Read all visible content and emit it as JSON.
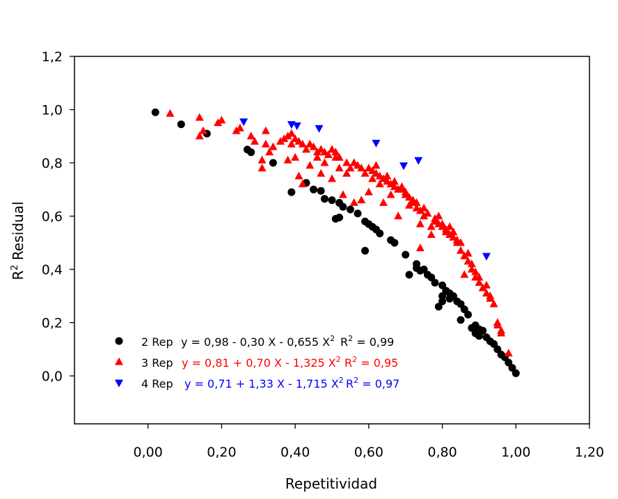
{
  "chart_data": {
    "type": "scatter",
    "title": "",
    "xlabel": "Repetitividad",
    "ylabel_main": "R",
    "ylabel_sup": "2",
    "ylabel_rest": " Residual",
    "xlim": [
      -0.2,
      1.2
    ],
    "ylim": [
      -0.18,
      1.2
    ],
    "x_ticks": [
      {
        "value": 0.0,
        "label": "0,00"
      },
      {
        "value": 0.2,
        "label": "0,20"
      },
      {
        "value": 0.4,
        "label": "0,40"
      },
      {
        "value": 0.6,
        "label": "0,60"
      },
      {
        "value": 0.8,
        "label": "0,80"
      },
      {
        "value": 1.0,
        "label": "1,00"
      },
      {
        "value": 1.2,
        "label": "1,20"
      }
    ],
    "y_ticks": [
      {
        "value": 0.0,
        "label": "0,0"
      },
      {
        "value": 0.2,
        "label": "0,2"
      },
      {
        "value": 0.4,
        "label": "0,4"
      },
      {
        "value": 0.6,
        "label": "0,6"
      },
      {
        "value": 0.8,
        "label": "0,8"
      },
      {
        "value": 1.0,
        "label": "1,0"
      },
      {
        "value": 1.2,
        "label": "1,2"
      }
    ],
    "grid": false,
    "legend_position": "bottom-left",
    "series": [
      {
        "name": "2 Rep",
        "marker": "circle",
        "color": "#000000",
        "equation": "y = 0,98 - 0,30 X - 0,655 X",
        "equation_sup": "2",
        "r2_label": "R",
        "r2_sup": "2",
        "r2_value": " = 0,99",
        "points": [
          [
            0.02,
            0.99
          ],
          [
            0.09,
            0.945
          ],
          [
            0.16,
            0.91
          ],
          [
            0.27,
            0.85
          ],
          [
            0.28,
            0.84
          ],
          [
            0.34,
            0.8
          ],
          [
            0.39,
            0.69
          ],
          [
            0.43,
            0.725
          ],
          [
            0.45,
            0.7
          ],
          [
            0.47,
            0.695
          ],
          [
            0.48,
            0.665
          ],
          [
            0.5,
            0.66
          ],
          [
            0.51,
            0.59
          ],
          [
            0.52,
            0.595
          ],
          [
            0.52,
            0.65
          ],
          [
            0.53,
            0.635
          ],
          [
            0.55,
            0.625
          ],
          [
            0.57,
            0.61
          ],
          [
            0.59,
            0.47
          ],
          [
            0.59,
            0.58
          ],
          [
            0.6,
            0.57
          ],
          [
            0.61,
            0.56
          ],
          [
            0.62,
            0.55
          ],
          [
            0.63,
            0.535
          ],
          [
            0.66,
            0.51
          ],
          [
            0.67,
            0.5
          ],
          [
            0.7,
            0.455
          ],
          [
            0.71,
            0.38
          ],
          [
            0.73,
            0.405
          ],
          [
            0.73,
            0.42
          ],
          [
            0.74,
            0.395
          ],
          [
            0.75,
            0.4
          ],
          [
            0.76,
            0.38
          ],
          [
            0.77,
            0.37
          ],
          [
            0.78,
            0.35
          ],
          [
            0.79,
            0.26
          ],
          [
            0.8,
            0.34
          ],
          [
            0.8,
            0.28
          ],
          [
            0.8,
            0.3
          ],
          [
            0.81,
            0.32
          ],
          [
            0.82,
            0.31
          ],
          [
            0.82,
            0.29
          ],
          [
            0.83,
            0.3
          ],
          [
            0.84,
            0.28
          ],
          [
            0.85,
            0.27
          ],
          [
            0.85,
            0.21
          ],
          [
            0.86,
            0.25
          ],
          [
            0.87,
            0.23
          ],
          [
            0.88,
            0.18
          ],
          [
            0.89,
            0.16
          ],
          [
            0.89,
            0.19
          ],
          [
            0.9,
            0.175
          ],
          [
            0.9,
            0.15
          ],
          [
            0.91,
            0.17
          ],
          [
            0.92,
            0.145
          ],
          [
            0.93,
            0.13
          ],
          [
            0.94,
            0.12
          ],
          [
            0.95,
            0.1
          ],
          [
            0.96,
            0.08
          ],
          [
            0.97,
            0.07
          ],
          [
            0.98,
            0.05
          ],
          [
            0.99,
            0.03
          ],
          [
            1.0,
            0.01
          ]
        ]
      },
      {
        "name": "3 Rep",
        "marker": "triangle-up",
        "color": "#ff0000",
        "equation": "y = 0,81 + 0,70 X - 1,325 X",
        "equation_sup": "2",
        "r2_label": "R",
        "r2_sup": "2",
        "r2_value": " = 0,95",
        "points": [
          [
            0.06,
            0.985
          ],
          [
            0.14,
            0.97
          ],
          [
            0.14,
            0.9
          ],
          [
            0.15,
            0.92
          ],
          [
            0.19,
            0.95
          ],
          [
            0.2,
            0.96
          ],
          [
            0.24,
            0.92
          ],
          [
            0.25,
            0.93
          ],
          [
            0.28,
            0.9
          ],
          [
            0.29,
            0.88
          ],
          [
            0.31,
            0.81
          ],
          [
            0.31,
            0.78
          ],
          [
            0.32,
            0.92
          ],
          [
            0.32,
            0.87
          ],
          [
            0.33,
            0.84
          ],
          [
            0.34,
            0.86
          ],
          [
            0.36,
            0.88
          ],
          [
            0.37,
            0.89
          ],
          [
            0.38,
            0.81
          ],
          [
            0.38,
            0.9
          ],
          [
            0.39,
            0.91
          ],
          [
            0.39,
            0.87
          ],
          [
            0.4,
            0.89
          ],
          [
            0.4,
            0.82
          ],
          [
            0.41,
            0.75
          ],
          [
            0.41,
            0.88
          ],
          [
            0.42,
            0.87
          ],
          [
            0.42,
            0.72
          ],
          [
            0.43,
            0.85
          ],
          [
            0.44,
            0.87
          ],
          [
            0.44,
            0.79
          ],
          [
            0.45,
            0.86
          ],
          [
            0.46,
            0.82
          ],
          [
            0.46,
            0.84
          ],
          [
            0.47,
            0.85
          ],
          [
            0.47,
            0.76
          ],
          [
            0.48,
            0.84
          ],
          [
            0.48,
            0.8
          ],
          [
            0.49,
            0.83
          ],
          [
            0.5,
            0.85
          ],
          [
            0.5,
            0.74
          ],
          [
            0.51,
            0.82
          ],
          [
            0.51,
            0.84
          ],
          [
            0.52,
            0.82
          ],
          [
            0.52,
            0.78
          ],
          [
            0.53,
            0.68
          ],
          [
            0.54,
            0.76
          ],
          [
            0.54,
            0.8
          ],
          [
            0.55,
            0.78
          ],
          [
            0.56,
            0.8
          ],
          [
            0.56,
            0.65
          ],
          [
            0.57,
            0.79
          ],
          [
            0.58,
            0.78
          ],
          [
            0.58,
            0.66
          ],
          [
            0.59,
            0.76
          ],
          [
            0.6,
            0.78
          ],
          [
            0.6,
            0.69
          ],
          [
            0.61,
            0.77
          ],
          [
            0.61,
            0.74
          ],
          [
            0.62,
            0.76
          ],
          [
            0.62,
            0.79
          ],
          [
            0.63,
            0.75
          ],
          [
            0.63,
            0.72
          ],
          [
            0.64,
            0.74
          ],
          [
            0.64,
            0.65
          ],
          [
            0.65,
            0.73
          ],
          [
            0.65,
            0.75
          ],
          [
            0.66,
            0.72
          ],
          [
            0.66,
            0.68
          ],
          [
            0.67,
            0.71
          ],
          [
            0.67,
            0.73
          ],
          [
            0.68,
            0.7
          ],
          [
            0.68,
            0.6
          ],
          [
            0.69,
            0.71
          ],
          [
            0.69,
            0.7
          ],
          [
            0.7,
            0.69
          ],
          [
            0.7,
            0.68
          ],
          [
            0.71,
            0.67
          ],
          [
            0.71,
            0.64
          ],
          [
            0.72,
            0.65
          ],
          [
            0.72,
            0.66
          ],
          [
            0.73,
            0.63
          ],
          [
            0.73,
            0.65
          ],
          [
            0.74,
            0.62
          ],
          [
            0.74,
            0.48
          ],
          [
            0.74,
            0.57
          ],
          [
            0.75,
            0.6
          ],
          [
            0.75,
            0.63
          ],
          [
            0.76,
            0.61
          ],
          [
            0.77,
            0.56
          ],
          [
            0.77,
            0.53
          ],
          [
            0.78,
            0.59
          ],
          [
            0.78,
            0.58
          ],
          [
            0.79,
            0.57
          ],
          [
            0.79,
            0.6
          ],
          [
            0.8,
            0.56
          ],
          [
            0.8,
            0.57
          ],
          [
            0.81,
            0.55
          ],
          [
            0.81,
            0.54
          ],
          [
            0.82,
            0.56
          ],
          [
            0.82,
            0.53
          ],
          [
            0.83,
            0.52
          ],
          [
            0.83,
            0.54
          ],
          [
            0.84,
            0.5
          ],
          [
            0.84,
            0.51
          ],
          [
            0.85,
            0.47
          ],
          [
            0.85,
            0.5
          ],
          [
            0.86,
            0.45
          ],
          [
            0.86,
            0.38
          ],
          [
            0.87,
            0.46
          ],
          [
            0.87,
            0.43
          ],
          [
            0.88,
            0.4
          ],
          [
            0.88,
            0.42
          ],
          [
            0.89,
            0.39
          ],
          [
            0.89,
            0.37
          ],
          [
            0.9,
            0.35
          ],
          [
            0.9,
            0.37
          ],
          [
            0.91,
            0.33
          ],
          [
            0.92,
            0.34
          ],
          [
            0.92,
            0.31
          ],
          [
            0.93,
            0.29
          ],
          [
            0.93,
            0.3
          ],
          [
            0.94,
            0.27
          ],
          [
            0.95,
            0.2
          ],
          [
            0.95,
            0.19
          ],
          [
            0.96,
            0.17
          ],
          [
            0.96,
            0.16
          ],
          [
            0.98,
            0.085
          ]
        ]
      },
      {
        "name": "4 Rep",
        "marker": "triangle-down",
        "color": "#0000ff",
        "equation": "y = 0,71 + 1,33 X - 1,715 X",
        "equation_sup": "2",
        "r2_label": "R",
        "r2_sup": "2",
        "r2_value": " = 0,97",
        "points": [
          [
            0.26,
            0.955
          ],
          [
            0.39,
            0.945
          ],
          [
            0.405,
            0.94
          ],
          [
            0.465,
            0.93
          ],
          [
            0.62,
            0.875
          ],
          [
            0.695,
            0.79
          ],
          [
            0.735,
            0.81
          ],
          [
            0.92,
            0.45
          ]
        ]
      }
    ]
  }
}
